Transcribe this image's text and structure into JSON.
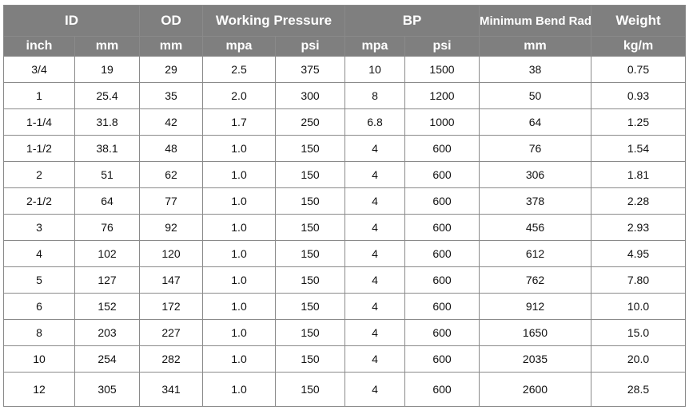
{
  "table": {
    "groups": [
      {
        "label": "ID",
        "colspan": 2
      },
      {
        "label": "OD",
        "colspan": 1
      },
      {
        "label": "Working Pressure",
        "colspan": 2
      },
      {
        "label": "BP",
        "colspan": 2
      },
      {
        "label": "Minimum Bend Radius",
        "colspan": 1
      },
      {
        "label": "Weight",
        "colspan": 1
      }
    ],
    "units": [
      "inch",
      "mm",
      "mm",
      "mpa",
      "psi",
      "mpa",
      "psi",
      "mm",
      "kg/m"
    ],
    "rows": [
      [
        "3/4",
        "19",
        "29",
        "2.5",
        "375",
        "10",
        "1500",
        "38",
        "0.75"
      ],
      [
        "1",
        "25.4",
        "35",
        "2.0",
        "300",
        "8",
        "1200",
        "50",
        "0.93"
      ],
      [
        "1-1/4",
        "31.8",
        "42",
        "1.7",
        "250",
        "6.8",
        "1000",
        "64",
        "1.25"
      ],
      [
        "1-1/2",
        "38.1",
        "48",
        "1.0",
        "150",
        "4",
        "600",
        "76",
        "1.54"
      ],
      [
        "2",
        "51",
        "62",
        "1.0",
        "150",
        "4",
        "600",
        "306",
        "1.81"
      ],
      [
        "2-1/2",
        "64",
        "77",
        "1.0",
        "150",
        "4",
        "600",
        "378",
        "2.28"
      ],
      [
        "3",
        "76",
        "92",
        "1.0",
        "150",
        "4",
        "600",
        "456",
        "2.93"
      ],
      [
        "4",
        "102",
        "120",
        "1.0",
        "150",
        "4",
        "600",
        "612",
        "4.95"
      ],
      [
        "5",
        "127",
        "147",
        "1.0",
        "150",
        "4",
        "600",
        "762",
        "7.80"
      ],
      [
        "6",
        "152",
        "172",
        "1.0",
        "150",
        "4",
        "600",
        "912",
        "10.0"
      ],
      [
        "8",
        "203",
        "227",
        "1.0",
        "150",
        "4",
        "600",
        "1650",
        "15.0"
      ],
      [
        "10",
        "254",
        "282",
        "1.0",
        "150",
        "4",
        "600",
        "2035",
        "20.0"
      ],
      [
        "12",
        "305",
        "341",
        "1.0",
        "150",
        "4",
        "600",
        "2600",
        "28.5"
      ]
    ]
  },
  "colors": {
    "header_bg": "#7f7f7f",
    "header_text": "#ffffff",
    "border": "#8a8a8a"
  }
}
